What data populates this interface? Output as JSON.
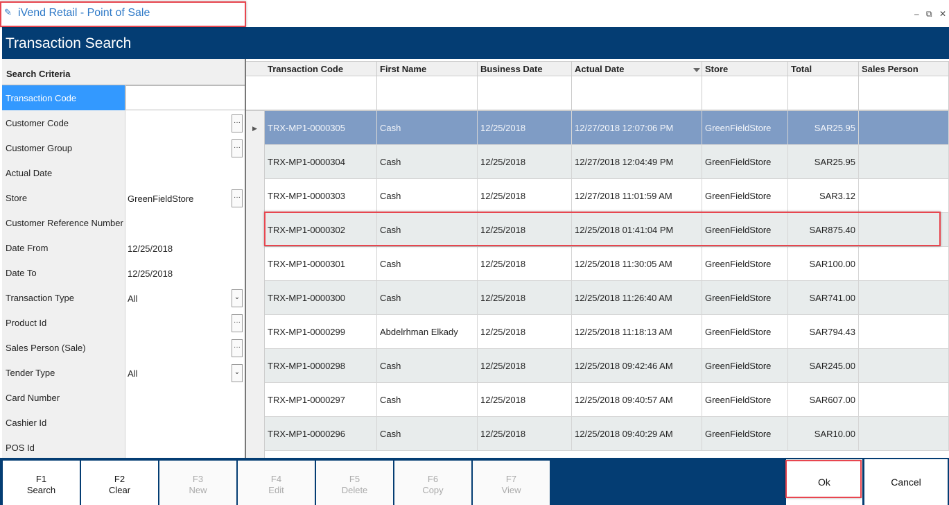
{
  "app": {
    "title": "iVend Retail - Point of Sale",
    "icon": "app-logo-icon"
  },
  "window_controls": {
    "minimize": "–",
    "restore": "⧉",
    "close": "✕"
  },
  "header": {
    "title": "Transaction Search"
  },
  "criteria": {
    "title": "Search Criteria",
    "rows": [
      {
        "label": "Transaction Code",
        "value": ""
      },
      {
        "label": "Customer Code",
        "value": ""
      },
      {
        "label": "Customer Group",
        "value": ""
      },
      {
        "label": "Actual Date",
        "value": ""
      },
      {
        "label": "Store",
        "value": "GreenFieldStore"
      },
      {
        "label": "Customer Reference Number",
        "value": ""
      },
      {
        "label": "Date From",
        "value": "12/25/2018"
      },
      {
        "label": "Date To",
        "value": "12/25/2018"
      },
      {
        "label": "Transaction Type",
        "value": "All"
      },
      {
        "label": "Product Id",
        "value": ""
      },
      {
        "label": "Sales Person (Sale)",
        "value": ""
      },
      {
        "label": "Tender Type",
        "value": "All"
      },
      {
        "label": "Card Number",
        "value": ""
      },
      {
        "label": "Cashier Id",
        "value": ""
      },
      {
        "label": "POS Id",
        "value": ""
      }
    ],
    "ellipsis": "···",
    "dropdown": "⌄"
  },
  "grid": {
    "columns": [
      "Transaction Code",
      "First Name",
      "Business Date",
      "Actual Date",
      "Store",
      "Total",
      "Sales Person"
    ],
    "rows": [
      [
        "TRX-MP1-0000305",
        "Cash",
        "12/25/2018",
        "12/27/2018 12:07:06 PM",
        "GreenFieldStore",
        "SAR25.95",
        ""
      ],
      [
        "TRX-MP1-0000304",
        "Cash",
        "12/25/2018",
        "12/27/2018 12:04:49 PM",
        "GreenFieldStore",
        "SAR25.95",
        ""
      ],
      [
        "TRX-MP1-0000303",
        "Cash",
        "12/25/2018",
        "12/27/2018 11:01:59 AM",
        "GreenFieldStore",
        "SAR3.12",
        ""
      ],
      [
        "TRX-MP1-0000302",
        "Cash",
        "12/25/2018",
        "12/25/2018 01:41:04 PM",
        "GreenFieldStore",
        "SAR875.40",
        ""
      ],
      [
        "TRX-MP1-0000301",
        "Cash",
        "12/25/2018",
        "12/25/2018 11:30:05 AM",
        "GreenFieldStore",
        "SAR100.00",
        ""
      ],
      [
        "TRX-MP1-0000300",
        "Cash",
        "12/25/2018",
        "12/25/2018 11:26:40 AM",
        "GreenFieldStore",
        "SAR741.00",
        ""
      ],
      [
        "TRX-MP1-0000299",
        "Abdelrhman Elkady",
        "12/25/2018",
        "12/25/2018 11:18:13 AM",
        "GreenFieldStore",
        "SAR794.43",
        ""
      ],
      [
        "TRX-MP1-0000298",
        "Cash",
        "12/25/2018",
        "12/25/2018 09:42:46 AM",
        "GreenFieldStore",
        "SAR245.00",
        ""
      ],
      [
        "TRX-MP1-0000297",
        "Cash",
        "12/25/2018",
        "12/25/2018 09:40:57 AM",
        "GreenFieldStore",
        "SAR607.00",
        ""
      ],
      [
        "TRX-MP1-0000296",
        "Cash",
        "12/25/2018",
        "12/25/2018 09:40:29 AM",
        "GreenFieldStore",
        "SAR10.00",
        ""
      ]
    ],
    "filter_pin": "📍",
    "row_arrow": "▶"
  },
  "footer": {
    "buttons": [
      {
        "key": "F1",
        "label": "Search",
        "enabled": true
      },
      {
        "key": "F2",
        "label": "Clear",
        "enabled": true
      },
      {
        "key": "F3",
        "label": "New",
        "enabled": false
      },
      {
        "key": "F4",
        "label": "Edit",
        "enabled": false
      },
      {
        "key": "F5",
        "label": "Delete",
        "enabled": false
      },
      {
        "key": "F6",
        "label": "Copy",
        "enabled": false
      },
      {
        "key": "F7",
        "label": "View",
        "enabled": false
      }
    ],
    "ok": "Ok",
    "cancel": "Cancel"
  },
  "colors": {
    "header": "#043d73",
    "selected_row": "#7f9cc5",
    "selected_field": "#3399ff",
    "highlight": "#e8464f"
  }
}
